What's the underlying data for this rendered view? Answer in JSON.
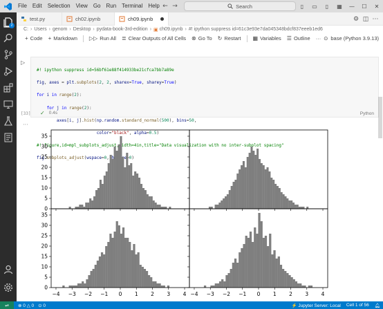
{
  "titlebar": {
    "menu": [
      "File",
      "Edit",
      "Selection",
      "View",
      "Go",
      "Run",
      "Terminal",
      "Help"
    ],
    "search_placeholder": "Search"
  },
  "activity_bar": {
    "explorer_badge": "2"
  },
  "tabs": [
    {
      "label": "test.py"
    },
    {
      "label": "ch02.ipynb"
    },
    {
      "label": "ch09.ipynb"
    }
  ],
  "breadcrumb": [
    "C:",
    "Users",
    "genom",
    "Desktop",
    "pydata-book-3rd-edition",
    "ch09.ipynb",
    "#! ipython suppress id=61c3e93e7da045348bdcf837eeeb1ed6"
  ],
  "toolbar": {
    "code": "Code",
    "markdown": "Markdown",
    "run_all": "Run All",
    "clear_outputs": "Clear Outputs of All Cells",
    "go_to": "Go To",
    "restart": "Restart",
    "variables": "Variables",
    "outline": "Outline",
    "more": "···",
    "kernel": "base (Python 3.9.13)"
  },
  "cell": {
    "lines": [
      "#! ipython suppress id=56bf61e88f414933be21cfca7bb7a89e",
      "fig, axes = plt.subplots(2, 2, sharex=True, sharey=True)",
      "for i in range(2):",
      "    for j in range(2):",
      "        axes[i, j].hist(np.random.standard_normal(500), bins=50,",
      "                        color=\"black\", alpha=0.5)",
      "#! figure,id=mpl_subplots_adjust,width=4in,title=\"Data visualization with no inter-subplot spacing\"",
      "fig.subplots_adjust(wspace=0, hspace=0)"
    ],
    "exec_count": "[33]",
    "exec_time": "0.4s",
    "language": "Python",
    "output_more": "···"
  },
  "chart_data": {
    "type": "bar",
    "description": "2x2 grid of histograms with shared axes, no spacing",
    "xlim": [
      -4.3,
      4.3
    ],
    "ylim": [
      0,
      38
    ],
    "yticks": [
      0,
      5,
      10,
      15,
      20,
      25,
      30,
      35
    ],
    "xticks": [
      -4,
      -3,
      -2,
      -1,
      0,
      1,
      2,
      3,
      4
    ],
    "color": "#7f7f7f",
    "panels": [
      {
        "name": "top-left",
        "x_start": -3.2,
        "bin_width": 0.127,
        "values": [
          1,
          0,
          0,
          1,
          1,
          2,
          2,
          1,
          3,
          3,
          5,
          4,
          6,
          9,
          10,
          14,
          12,
          16,
          18,
          22,
          26,
          24,
          30,
          28,
          31,
          35,
          25,
          20,
          27,
          21,
          22,
          16,
          18,
          17,
          15,
          12,
          10,
          9,
          7,
          6,
          6,
          4,
          3,
          2,
          2,
          1,
          1,
          1,
          0,
          1
        ]
      },
      {
        "name": "top-right",
        "x_start": -3.1,
        "bin_width": 0.124,
        "values": [
          1,
          1,
          0,
          2,
          2,
          3,
          4,
          5,
          6,
          7,
          9,
          11,
          13,
          14,
          17,
          19,
          21,
          23,
          20,
          25,
          27,
          30,
          28,
          26,
          29,
          24,
          22,
          21,
          19,
          20,
          18,
          15,
          14,
          12,
          11,
          10,
          8,
          7,
          6,
          5,
          4,
          4,
          3,
          2,
          2,
          1,
          1,
          1,
          0,
          1
        ]
      },
      {
        "name": "bottom-left",
        "x_start": -3.6,
        "bin_width": 0.133,
        "values": [
          1,
          0,
          0,
          1,
          1,
          1,
          1,
          2,
          2,
          3,
          2,
          4,
          6,
          8,
          9,
          11,
          13,
          15,
          17,
          16,
          20,
          22,
          26,
          24,
          27,
          32,
          30,
          26,
          29,
          24,
          24,
          22,
          18,
          21,
          16,
          17,
          11,
          10,
          9,
          8,
          6,
          5,
          3,
          3,
          2,
          2,
          1,
          1,
          0,
          1
        ]
      },
      {
        "name": "bottom-right",
        "x_start": -3.4,
        "bin_width": 0.135,
        "values": [
          1,
          0,
          0,
          1,
          1,
          2,
          2,
          3,
          4,
          3,
          6,
          7,
          9,
          12,
          14,
          12,
          17,
          19,
          21,
          25,
          24,
          27,
          22,
          29,
          26,
          36,
          32,
          24,
          25,
          20,
          26,
          16,
          18,
          14,
          15,
          11,
          9,
          8,
          7,
          6,
          5,
          4,
          3,
          2,
          2,
          1,
          1,
          0,
          1,
          1
        ]
      }
    ]
  },
  "statusbar": {
    "errors": "0",
    "warnings": "0",
    "ports": "0",
    "jupyter": "Jupyter Server: Local",
    "cell_pos": "Cell 1 of 56"
  }
}
